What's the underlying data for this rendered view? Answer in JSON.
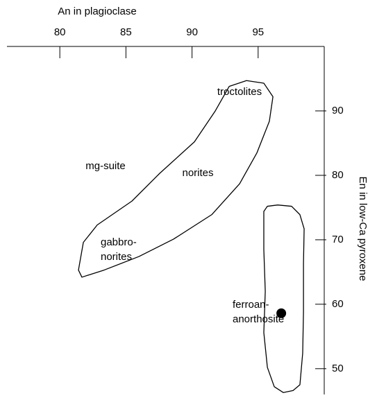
{
  "chart_data": {
    "type": "scatter",
    "x_label": "An in plagioclase",
    "y_label": "En in low-Ca pyroxene",
    "xlim": [
      76,
      100
    ],
    "ylim": [
      46,
      100
    ],
    "xticks": [
      80,
      85,
      90,
      95
    ],
    "yticks": [
      50,
      60,
      70,
      80,
      90
    ],
    "series": [
      {
        "kind": "outline",
        "color": "#000000",
        "x": [
          81.67,
          81.41,
          81.78,
          82.83,
          85.45,
          87.55,
          90.18,
          91.76,
          92.81,
          94.12,
          95.43,
          96.12,
          95.85,
          94.91,
          93.6,
          91.49,
          88.6,
          85.98,
          83.35
        ],
        "y": [
          64.2,
          65.3,
          69.6,
          72.3,
          76.0,
          80.3,
          85.2,
          90,
          93.8,
          94.7,
          94.3,
          92.2,
          88.4,
          83.5,
          78.7,
          73.9,
          70.1,
          67.4,
          65.3
        ]
      },
      {
        "kind": "outline",
        "color": "#000000",
        "x": [
          95.43,
          95.7,
          96.48,
          97.53,
          98.16,
          98.48,
          98.43,
          98.43,
          98.37,
          98.16,
          97.64,
          96.9,
          96.22,
          95.7,
          95.43,
          95.54,
          95.43
        ],
        "y": [
          74.4,
          75.2,
          75.4,
          75.2,
          73.9,
          71.7,
          66.3,
          58.8,
          52.4,
          47.5,
          46.6,
          46.3,
          47.2,
          50.2,
          55.6,
          62.0,
          68.5
        ]
      },
      {
        "kind": "point",
        "color": "#000000",
        "x": [
          96.75
        ],
        "y": [
          58.6
        ]
      }
    ],
    "annotations": [
      [
        "troctolites"
      ],
      [
        "mg-suite"
      ],
      [
        "norites"
      ],
      [
        "gabbro-",
        "norites"
      ],
      [
        "ferroan-",
        "anorthosite"
      ]
    ]
  }
}
